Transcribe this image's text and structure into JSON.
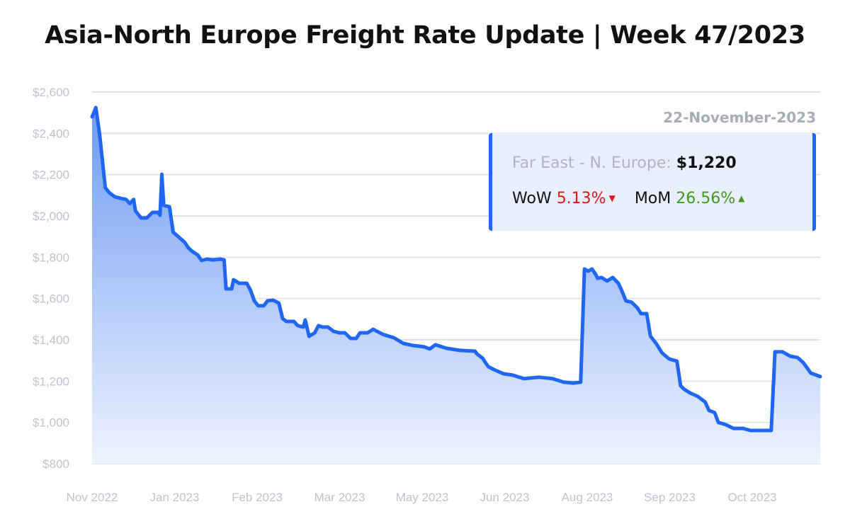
{
  "title": "Asia-North Europe Freight Rate Update | Week 47/2023",
  "info_box": {
    "date": "22-November-2023",
    "route_label": "Far East - N. Europe:",
    "route_value": "$1,220",
    "wow_label": "WoW",
    "wow_value": "5.13%",
    "wow_direction": "down",
    "mom_label": "MoM",
    "mom_value": "26.56%",
    "mom_direction": "up",
    "colors": {
      "down": "#e0161e",
      "up": "#3f9a22",
      "accent": "#1f66f5",
      "background": "#e9effd"
    }
  },
  "chart_data": {
    "type": "area",
    "title": "",
    "xlabel": "",
    "ylabel": "",
    "ylim": [
      800,
      2600
    ],
    "y_ticks": [
      "$800",
      "$1,000",
      "$1,200",
      "$1,400",
      "$1,600",
      "$1,800",
      "$2,000",
      "$2,200",
      "$2,400",
      "$2,600"
    ],
    "x_ticks": [
      "Nov 2022",
      "Jan 2023",
      "Feb 2023",
      "Mar 2023",
      "May 2023",
      "Jun 2023",
      "Aug 2023",
      "Sep 2023",
      "Oct 2023"
    ],
    "grid": true,
    "line_color": "#1f66f5",
    "fill_color_top": "#6e9af4",
    "fill_color_bottom": "#eef3fe",
    "points": [
      [
        "2022-11-01",
        2480
      ],
      [
        "2022-11-03",
        2525
      ],
      [
        "2022-11-05",
        2394
      ],
      [
        "2022-11-08",
        2137
      ],
      [
        "2022-11-10",
        2113
      ],
      [
        "2022-11-13",
        2093
      ],
      [
        "2022-11-16",
        2086
      ],
      [
        "2022-11-19",
        2080
      ],
      [
        "2022-11-21",
        2060
      ],
      [
        "2022-11-23",
        2080
      ],
      [
        "2022-11-24",
        2024
      ],
      [
        "2022-11-27",
        1990
      ],
      [
        "2022-11-30",
        1990
      ],
      [
        "2022-12-03",
        2017
      ],
      [
        "2022-12-06",
        2017
      ],
      [
        "2022-12-07",
        2003
      ],
      [
        "2022-12-08",
        2202
      ],
      [
        "2022-12-09",
        2051
      ],
      [
        "2022-12-12",
        2045
      ],
      [
        "2022-12-14",
        1921
      ],
      [
        "2022-12-17",
        1897
      ],
      [
        "2022-12-20",
        1873
      ],
      [
        "2022-12-22",
        1846
      ],
      [
        "2022-12-24",
        1829
      ],
      [
        "2022-12-27",
        1811
      ],
      [
        "2022-12-29",
        1784
      ],
      [
        "2023-01-01",
        1791
      ],
      [
        "2023-01-04",
        1787
      ],
      [
        "2023-01-08",
        1791
      ],
      [
        "2023-01-10",
        1787
      ],
      [
        "2023-01-11",
        1647
      ],
      [
        "2023-01-14",
        1647
      ],
      [
        "2023-01-15",
        1691
      ],
      [
        "2023-01-18",
        1674
      ],
      [
        "2023-01-22",
        1674
      ],
      [
        "2023-01-24",
        1640
      ],
      [
        "2023-01-26",
        1589
      ],
      [
        "2023-01-28",
        1565
      ],
      [
        "2023-01-31",
        1565
      ],
      [
        "2023-02-02",
        1589
      ],
      [
        "2023-02-05",
        1592
      ],
      [
        "2023-02-08",
        1578
      ],
      [
        "2023-02-10",
        1503
      ],
      [
        "2023-02-12",
        1489
      ],
      [
        "2023-02-16",
        1489
      ],
      [
        "2023-02-18",
        1469
      ],
      [
        "2023-02-21",
        1462
      ],
      [
        "2023-02-22",
        1496
      ],
      [
        "2023-02-24",
        1417
      ],
      [
        "2023-02-27",
        1434
      ],
      [
        "2023-03-01",
        1469
      ],
      [
        "2023-03-03",
        1462
      ],
      [
        "2023-03-06",
        1462
      ],
      [
        "2023-03-09",
        1441
      ],
      [
        "2023-03-12",
        1434
      ],
      [
        "2023-03-15",
        1434
      ],
      [
        "2023-03-18",
        1407
      ],
      [
        "2023-03-21",
        1407
      ],
      [
        "2023-03-23",
        1434
      ],
      [
        "2023-03-27",
        1434
      ],
      [
        "2023-03-30",
        1451
      ],
      [
        "2023-04-04",
        1427
      ],
      [
        "2023-04-10",
        1410
      ],
      [
        "2023-04-15",
        1383
      ],
      [
        "2023-04-20",
        1373
      ],
      [
        "2023-04-26",
        1366
      ],
      [
        "2023-04-29",
        1356
      ],
      [
        "2023-05-02",
        1376
      ],
      [
        "2023-05-08",
        1359
      ],
      [
        "2023-05-15",
        1349
      ],
      [
        "2023-05-23",
        1345
      ],
      [
        "2023-05-24",
        1332
      ],
      [
        "2023-05-27",
        1311
      ],
      [
        "2023-05-28",
        1297
      ],
      [
        "2023-05-30",
        1270
      ],
      [
        "2023-06-02",
        1256
      ],
      [
        "2023-06-07",
        1236
      ],
      [
        "2023-06-12",
        1229
      ],
      [
        "2023-06-18",
        1212
      ],
      [
        "2023-06-26",
        1219
      ],
      [
        "2023-07-03",
        1212
      ],
      [
        "2023-07-09",
        1195
      ],
      [
        "2023-07-14",
        1191
      ],
      [
        "2023-07-18",
        1195
      ],
      [
        "2023-07-20",
        1743
      ],
      [
        "2023-07-22",
        1733
      ],
      [
        "2023-07-24",
        1743
      ],
      [
        "2023-07-26",
        1716
      ],
      [
        "2023-07-27",
        1698
      ],
      [
        "2023-07-29",
        1702
      ],
      [
        "2023-08-01",
        1685
      ],
      [
        "2023-08-04",
        1702
      ],
      [
        "2023-08-07",
        1674
      ],
      [
        "2023-08-09",
        1633
      ],
      [
        "2023-08-11",
        1589
      ],
      [
        "2023-08-14",
        1582
      ],
      [
        "2023-08-17",
        1555
      ],
      [
        "2023-08-19",
        1527
      ],
      [
        "2023-08-22",
        1527
      ],
      [
        "2023-08-24",
        1417
      ],
      [
        "2023-08-27",
        1383
      ],
      [
        "2023-08-30",
        1338
      ],
      [
        "2023-09-03",
        1307
      ],
      [
        "2023-09-07",
        1297
      ],
      [
        "2023-09-09",
        1177
      ],
      [
        "2023-09-11",
        1160
      ],
      [
        "2023-09-14",
        1143
      ],
      [
        "2023-09-18",
        1126
      ],
      [
        "2023-09-22",
        1099
      ],
      [
        "2023-09-24",
        1058
      ],
      [
        "2023-09-27",
        1048
      ],
      [
        "2023-09-29",
        1000
      ],
      [
        "2023-10-03",
        989
      ],
      [
        "2023-10-07",
        971
      ],
      [
        "2023-10-12",
        971
      ],
      [
        "2023-10-16",
        961
      ],
      [
        "2023-10-23",
        961
      ],
      [
        "2023-10-27",
        961
      ],
      [
        "2023-10-29",
        1342
      ],
      [
        "2023-11-02",
        1342
      ],
      [
        "2023-11-06",
        1321
      ],
      [
        "2023-11-10",
        1314
      ],
      [
        "2023-11-13",
        1290
      ],
      [
        "2023-11-17",
        1239
      ],
      [
        "2023-11-22",
        1222
      ]
    ]
  }
}
